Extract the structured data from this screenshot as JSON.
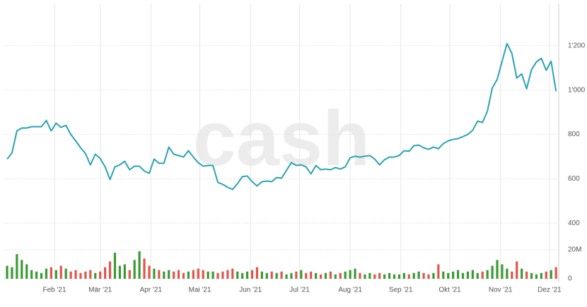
{
  "chart_data": {
    "type": "stock",
    "watermark": "cash",
    "color": "#2ba3b3",
    "volume_up_color": "#3a9a34",
    "volume_down_color": "#e0564c",
    "grid": true,
    "xlim": [
      0,
      339
    ],
    "xticks": [
      {
        "value": 31,
        "label": "Feb '21"
      },
      {
        "value": 59,
        "label": "Mär '21"
      },
      {
        "value": 90,
        "label": "Apr '21"
      },
      {
        "value": 120,
        "label": "Mai '21"
      },
      {
        "value": 151,
        "label": "Jun '21"
      },
      {
        "value": 181,
        "label": "Jul '21"
      },
      {
        "value": 212,
        "label": "Aug '21"
      },
      {
        "value": 243,
        "label": "Sep '21"
      },
      {
        "value": 273,
        "label": "Okt '21"
      },
      {
        "value": 304,
        "label": "Nov '21"
      },
      {
        "value": 334,
        "label": "Dez '21"
      }
    ],
    "ylim": [
      350,
      1390
    ],
    "yticks": [
      400,
      600,
      800,
      {
        "value": 1000,
        "label": "1'000"
      },
      {
        "value": 1200,
        "label": "1'200"
      }
    ],
    "y2lim": [
      0,
      30000000
    ],
    "y2ticks": [
      0,
      {
        "value": 20000000,
        "label": "20M"
      }
    ],
    "x": [
      2,
      5,
      8,
      11,
      14,
      17,
      20,
      23,
      26,
      29,
      32,
      35,
      38,
      41,
      44,
      47,
      50,
      53,
      56,
      59,
      62,
      65,
      68,
      71,
      74,
      77,
      80,
      83,
      86,
      89,
      92,
      95,
      98,
      101,
      104,
      107,
      110,
      113,
      116,
      119,
      122,
      125,
      128,
      131,
      134,
      137,
      140,
      143,
      146,
      149,
      152,
      155,
      158,
      161,
      164,
      167,
      170,
      173,
      176,
      179,
      182,
      185,
      188,
      191,
      194,
      197,
      200,
      203,
      206,
      209,
      212,
      215,
      218,
      221,
      224,
      227,
      230,
      233,
      236,
      239,
      242,
      245,
      248,
      251,
      254,
      257,
      260,
      263,
      266,
      269,
      272,
      275,
      278,
      281,
      284,
      287,
      290,
      293,
      296,
      299,
      302,
      305,
      308,
      311,
      314,
      317,
      320,
      323,
      326,
      329,
      332,
      335,
      338
    ],
    "values": [
      689,
      717,
      816,
      829,
      829,
      835,
      835,
      835,
      863,
      816,
      851,
      832,
      841,
      800,
      771,
      740,
      714,
      663,
      711,
      692,
      654,
      597,
      654,
      663,
      679,
      641,
      657,
      657,
      635,
      625,
      689,
      670,
      670,
      743,
      711,
      705,
      698,
      727,
      698,
      673,
      657,
      660,
      660,
      584,
      575,
      562,
      552,
      578,
      610,
      613,
      587,
      568,
      587,
      590,
      587,
      606,
      603,
      638,
      673,
      660,
      663,
      654,
      622,
      660,
      641,
      644,
      641,
      651,
      644,
      654,
      695,
      702,
      698,
      702,
      705,
      689,
      663,
      686,
      698,
      698,
      705,
      727,
      724,
      749,
      752,
      740,
      733,
      743,
      736,
      759,
      771,
      778,
      781,
      790,
      800,
      819,
      860,
      854,
      905,
      1010,
      1048,
      1130,
      1210,
      1165,
      1054,
      1073,
      1006,
      1092,
      1127,
      1143,
      1089,
      1130,
      995
    ],
    "volume": [
      9000000,
      8000000,
      17000000,
      13000000,
      10000000,
      6000000,
      5000000,
      4000000,
      7000000,
      8000000,
      6000000,
      9000000,
      7000000,
      5000000,
      6000000,
      4000000,
      5000000,
      6000000,
      4000000,
      5000000,
      8000000,
      12000000,
      18000000,
      9000000,
      10000000,
      6000000,
      13000000,
      19000000,
      14000000,
      9000000,
      7000000,
      6000000,
      5000000,
      6000000,
      5000000,
      6000000,
      4000000,
      5000000,
      6000000,
      7000000,
      6000000,
      5000000,
      5000000,
      4000000,
      5000000,
      6000000,
      7000000,
      5000000,
      4000000,
      5000000,
      6000000,
      8000000,
      5000000,
      4000000,
      5000000,
      4000000,
      5000000,
      3000000,
      4000000,
      5000000,
      6000000,
      4000000,
      5000000,
      4000000,
      3000000,
      4000000,
      5000000,
      3000000,
      4000000,
      5000000,
      6000000,
      7000000,
      4000000,
      3000000,
      4000000,
      3000000,
      4000000,
      3000000,
      4000000,
      3000000,
      3000000,
      4000000,
      3000000,
      4000000,
      5000000,
      4000000,
      3000000,
      4000000,
      10000000,
      5000000,
      4000000,
      5000000,
      6000000,
      4000000,
      5000000,
      6000000,
      4000000,
      5000000,
      6000000,
      9000000,
      13000000,
      10000000,
      7000000,
      5000000,
      12000000,
      7000000,
      5000000,
      4000000,
      3000000,
      4000000,
      5000000,
      6000000,
      8000000
    ]
  }
}
